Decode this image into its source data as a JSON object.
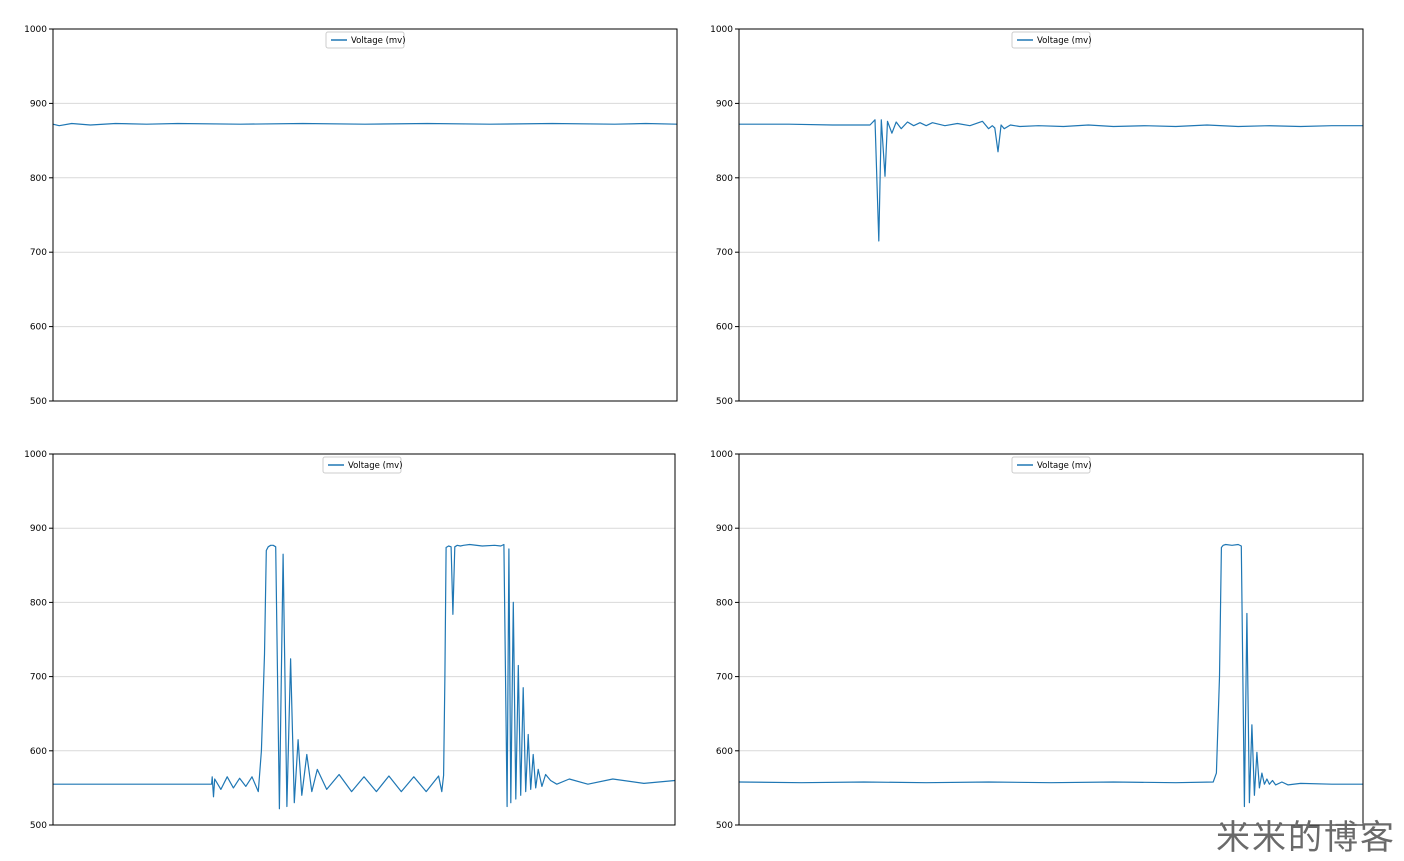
{
  "watermark": "米米的博客",
  "colors": {
    "series": "#1f77b4",
    "grid": "#d9d9d9",
    "axis": "#000000",
    "legend_border": "#cccccc"
  },
  "chart_data": [
    {
      "type": "line",
      "title": "",
      "xlabel": "",
      "ylabel": "",
      "ylim": [
        500,
        1000
      ],
      "yticks": [
        "500",
        "600",
        "700",
        "800",
        "900",
        "1000"
      ],
      "xlim": [
        0,
        100
      ],
      "grid": "horizontal",
      "legend": {
        "placement": "top-center",
        "entries": [
          "Voltage (mv)"
        ]
      },
      "series": [
        {
          "name": "Voltage (mv)",
          "x": [
            0,
            1,
            3,
            6,
            10,
            15,
            20,
            30,
            40,
            50,
            60,
            70,
            80,
            90,
            95,
            100
          ],
          "values": [
            872,
            870,
            873,
            871,
            873,
            872,
            873,
            872,
            873,
            872,
            873,
            872,
            873,
            872,
            873,
            872
          ]
        }
      ]
    },
    {
      "type": "line",
      "title": "",
      "xlabel": "",
      "ylabel": "",
      "ylim": [
        500,
        1000
      ],
      "yticks": [
        "500",
        "600",
        "700",
        "800",
        "900",
        "1000"
      ],
      "xlim": [
        0,
        100
      ],
      "grid": "horizontal",
      "legend": {
        "placement": "top-center",
        "entries": [
          "Voltage (mv)"
        ]
      },
      "series": [
        {
          "name": "Voltage (mv)",
          "x": [
            0,
            8,
            15,
            21,
            21.8,
            22.4,
            22.8,
            23.4,
            23.8,
            24.5,
            25.2,
            26,
            27,
            28,
            29,
            30,
            31,
            33,
            35,
            37,
            39,
            40,
            40.6,
            41,
            41.5,
            42,
            42.5,
            43.5,
            45,
            48,
            52,
            56,
            60,
            65,
            70,
            75,
            80,
            85,
            90,
            95,
            100
          ],
          "values": [
            872,
            872,
            871,
            871,
            878,
            715,
            878,
            802,
            876,
            860,
            875,
            866,
            875,
            870,
            874,
            870,
            874,
            870,
            873,
            870,
            876,
            866,
            870,
            867,
            835,
            871,
            866,
            871,
            869,
            870,
            869,
            871,
            869,
            870,
            869,
            871,
            869,
            870,
            869,
            870,
            870
          ]
        }
      ]
    },
    {
      "type": "line",
      "title": "",
      "xlabel": "",
      "ylabel": "",
      "ylim": [
        500,
        1000
      ],
      "yticks": [
        "500",
        "600",
        "700",
        "800",
        "900",
        "1000"
      ],
      "xlim": [
        0,
        100
      ],
      "grid": "horizontal",
      "legend": {
        "placement": "top-center",
        "entries": [
          "Voltage (mv)"
        ]
      },
      "series": [
        {
          "name": "Voltage (mv)",
          "x": [
            0,
            10,
            20,
            25.5,
            25.6,
            25.8,
            26,
            27,
            28,
            29,
            30,
            31,
            32,
            33,
            33.5,
            34,
            34.3,
            34.6,
            35,
            35.4,
            35.8,
            36.4,
            37,
            37.6,
            38.2,
            38.8,
            39.4,
            40,
            40.8,
            41.6,
            42.5,
            44,
            46,
            48,
            50,
            52,
            54,
            56,
            58,
            60,
            62,
            62.5,
            62.8,
            63,
            63.2,
            63.6,
            64,
            64.3,
            64.6,
            65,
            65.5,
            66,
            67,
            69,
            71,
            72,
            72.5,
            73,
            73.3,
            73.6,
            74,
            74.4,
            74.8,
            75.2,
            75.6,
            76,
            76.4,
            76.8,
            77.2,
            77.6,
            78,
            78.6,
            79.2,
            80,
            81,
            83,
            86,
            90,
            95,
            100
          ],
          "values": [
            555,
            555,
            555,
            555,
            565,
            538,
            562,
            548,
            565,
            550,
            563,
            552,
            565,
            545,
            600,
            730,
            870,
            875,
            877,
            877,
            875,
            522,
            865,
            525,
            724,
            530,
            615,
            540,
            595,
            545,
            575,
            548,
            568,
            545,
            565,
            545,
            566,
            545,
            565,
            545,
            566,
            545,
            567,
            700,
            874,
            876,
            875,
            784,
            875,
            877,
            876,
            877,
            878,
            876,
            877,
            876,
            878,
            525,
            872,
            530,
            800,
            535,
            715,
            540,
            685,
            545,
            622,
            548,
            595,
            550,
            575,
            552,
            568,
            560,
            555,
            562,
            555,
            562,
            556,
            560
          ]
        }
      ]
    },
    {
      "type": "line",
      "title": "",
      "xlabel": "",
      "ylabel": "",
      "ylim": [
        500,
        1000
      ],
      "yticks": [
        "500",
        "600",
        "700",
        "800",
        "900",
        "1000"
      ],
      "xlim": [
        0,
        100
      ],
      "grid": "horizontal",
      "legend": {
        "placement": "top-center",
        "entries": [
          "Voltage (mv)"
        ]
      },
      "series": [
        {
          "name": "Voltage (mv)",
          "x": [
            0,
            10,
            20,
            30,
            40,
            50,
            60,
            70,
            76,
            76.5,
            77,
            77.3,
            77.6,
            78,
            79,
            80,
            80.5,
            81,
            81.4,
            81.8,
            82.2,
            82.6,
            83,
            83.4,
            83.8,
            84.2,
            84.6,
            85,
            85.5,
            86,
            87,
            88,
            90,
            95,
            100
          ],
          "values": [
            558,
            557,
            558,
            557,
            558,
            557,
            558,
            557,
            558,
            570,
            700,
            874,
            877,
            878,
            877,
            878,
            876,
            525,
            785,
            530,
            635,
            540,
            598,
            550,
            570,
            555,
            562,
            555,
            560,
            554,
            558,
            554,
            556,
            555,
            555
          ]
        }
      ]
    }
  ]
}
